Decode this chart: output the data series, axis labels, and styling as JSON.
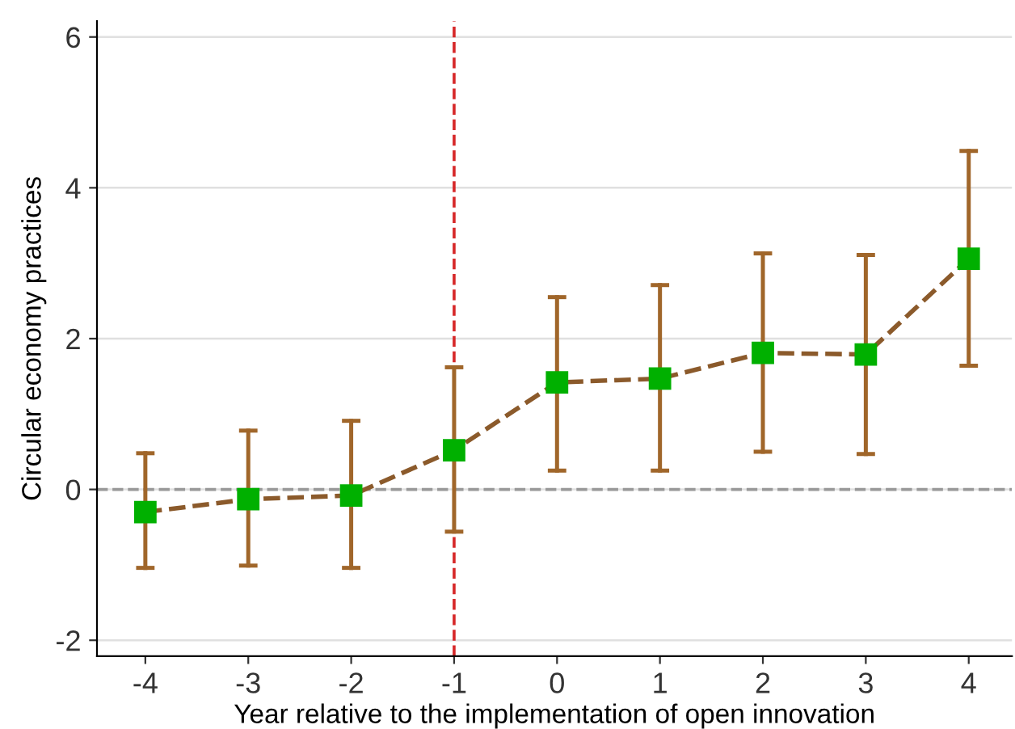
{
  "chart_data": {
    "type": "line",
    "xlabel": "Year relative to the implementation of open innovation",
    "ylabel": "Circular economy practices",
    "x": [
      -4,
      -3,
      -2,
      -1,
      0,
      1,
      2,
      3,
      4
    ],
    "series": [
      {
        "color": "#8b5a2b",
        "values": [
          -0.3,
          -0.13,
          -0.08,
          0.52,
          1.42,
          1.47,
          1.81,
          1.79,
          3.06
        ],
        "errors": [
          [
            -1.04,
            0.48
          ],
          [
            -1.01,
            0.78
          ],
          [
            -1.04,
            0.91
          ],
          [
            -0.56,
            1.62
          ],
          [
            0.25,
            2.55
          ],
          [
            0.25,
            2.71
          ],
          [
            0.5,
            3.13
          ],
          [
            0.47,
            3.11
          ],
          [
            1.64,
            4.49
          ]
        ]
      }
    ],
    "xlim": [
      -4.47,
      4.42
    ],
    "ylim": [
      -2.21,
      6.21
    ],
    "xticks": [
      -4,
      -3,
      -2,
      -1,
      0,
      1,
      2,
      3,
      4
    ],
    "yticks": [
      -2,
      0,
      2,
      4,
      6
    ],
    "grid": "y",
    "marker": "square",
    "line_style": "dashed",
    "legend": false,
    "ref_lines": [
      {
        "axis": "y",
        "value": 0,
        "color": "#999999",
        "line_style": "dashed"
      },
      {
        "axis": "x",
        "value": -1,
        "color": "#d62728",
        "line_style": "dashed"
      }
    ]
  }
}
